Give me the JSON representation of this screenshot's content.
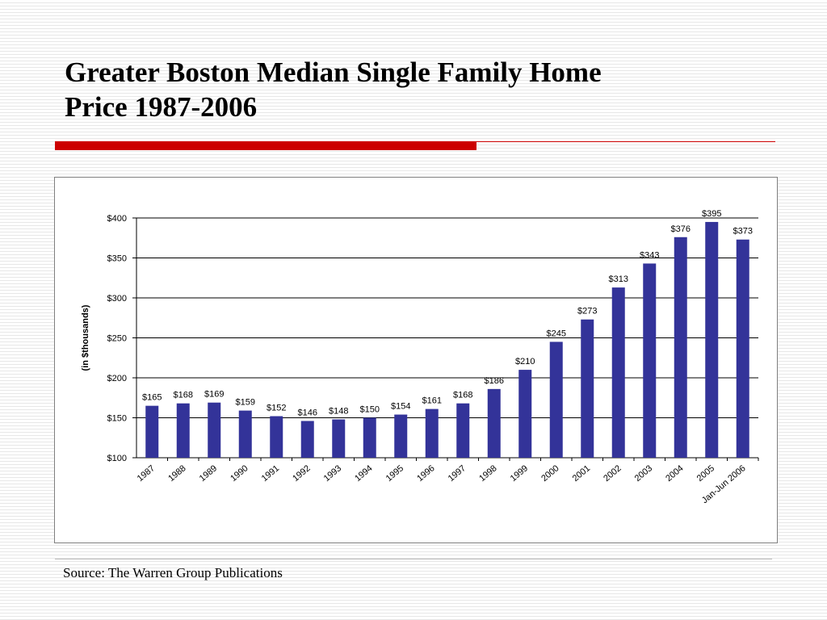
{
  "slide": {
    "title_line1": "Greater Boston Median Single Family Home",
    "title_line2": "Price 1987-2006",
    "source": "Source: The Warren Group Publications"
  },
  "colors": {
    "bar": "#333399",
    "accent_rule": "#cc0000",
    "gridline": "#000000"
  },
  "chart_data": {
    "type": "bar",
    "title": "",
    "xlabel": "",
    "ylabel": "(in $thousands)",
    "ylim": [
      100,
      400
    ],
    "yticks": [
      100,
      150,
      200,
      250,
      300,
      350,
      400
    ],
    "ytick_labels": [
      "$100",
      "$150",
      "$200",
      "$250",
      "$300",
      "$350",
      "$400"
    ],
    "grid": true,
    "legend": "none",
    "categories": [
      "1987",
      "1988",
      "1989",
      "1990",
      "1991",
      "1992",
      "1993",
      "1994",
      "1995",
      "1996",
      "1997",
      "1998",
      "1999",
      "2000",
      "2001",
      "2002",
      "2003",
      "2004",
      "2005",
      "Jan-Jun 2006"
    ],
    "values": [
      165,
      168,
      169,
      159,
      152,
      146,
      148,
      150,
      154,
      161,
      168,
      186,
      210,
      245,
      273,
      313,
      343,
      376,
      395,
      373
    ],
    "data_labels": [
      "$165",
      "$168",
      "$169",
      "$159",
      "$152",
      "$146",
      "$148",
      "$150",
      "$154",
      "$161",
      "$168",
      "$186",
      "$210",
      "$245",
      "$273",
      "$313",
      "$343",
      "$376",
      "$395",
      "$373"
    ]
  }
}
